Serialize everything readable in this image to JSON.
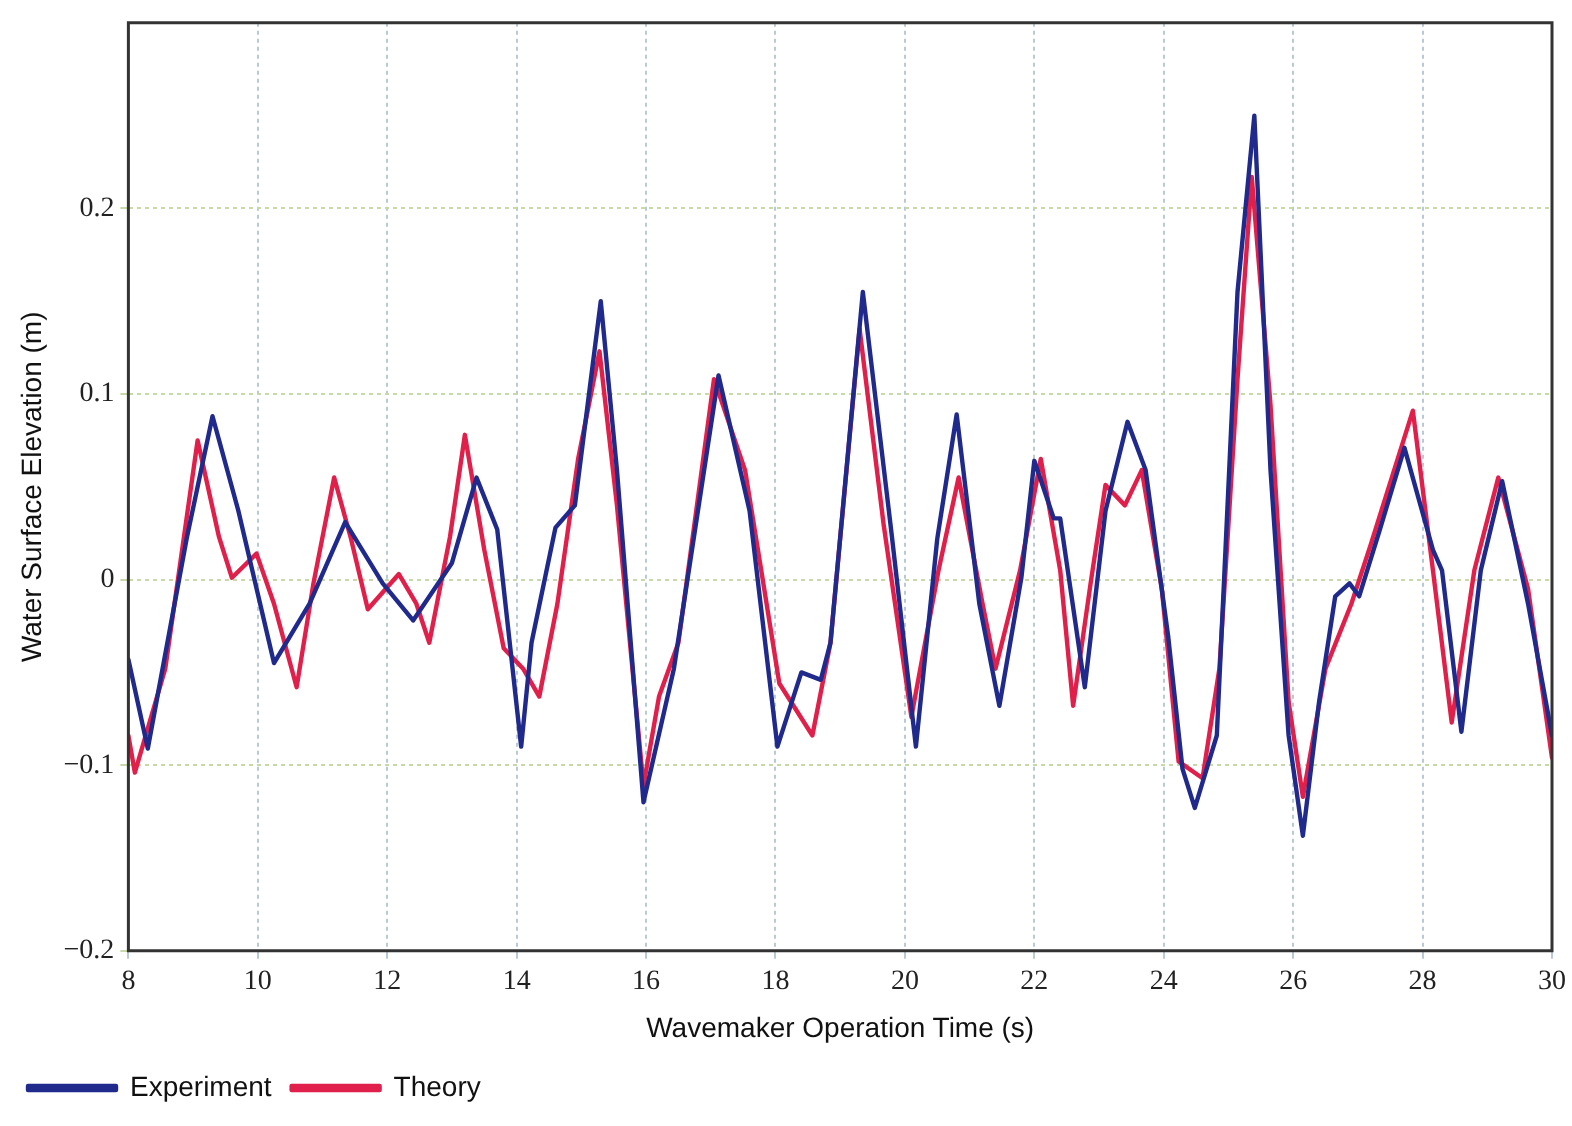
{
  "chart_data": {
    "type": "line",
    "xlabel": "Wavemaker Operation Time (s)",
    "ylabel": "Water Surface Elevation (m)",
    "xlim": [
      8,
      30
    ],
    "xticks": [
      8,
      10,
      12,
      14,
      16,
      18,
      20,
      22,
      24,
      26,
      28,
      30
    ],
    "ylim": [
      -0.2,
      0.3
    ],
    "yticks": [
      {
        "value": -0.2,
        "label": "−0.2"
      },
      {
        "value": -0.1,
        "label": "−0.1"
      },
      0,
      0.1,
      0.2
    ],
    "grid": true,
    "legend": "bottom left",
    "marker": "none",
    "line_style": "solid",
    "series": [
      {
        "name": "Experiment",
        "color": "#1f2a8c",
        "x": [
          8,
          8.3,
          8.9,
          9.3,
          9.7,
          10.25,
          10.8,
          11.35,
          11.93,
          12.4,
          13,
          13.38,
          13.7,
          14.07,
          14.23,
          14.6,
          14.9,
          15.3,
          15.55,
          15.96,
          16.43,
          17.12,
          17.6,
          18.03,
          18.4,
          18.7,
          18.85,
          19.35,
          19.8,
          20.17,
          20.5,
          20.8,
          21.15,
          21.46,
          21.8,
          22,
          22.3,
          22.4,
          22.78,
          23.1,
          23.44,
          23.72,
          24.07,
          24.29,
          24.48,
          24.82,
          25.14,
          25.4,
          25.65,
          25.93,
          26.15,
          26.4,
          26.65,
          26.87,
          27.02,
          27.34,
          27.72,
          28.16,
          28.3,
          28.6,
          28.9,
          29.23,
          29.63,
          30
        ],
        "values": [
          -0.043,
          -0.091,
          0.022,
          0.088,
          0.037,
          -0.045,
          -0.013,
          0.031,
          -0.002,
          -0.022,
          0.009,
          0.055,
          0.027,
          -0.09,
          -0.034,
          0.028,
          0.04,
          0.15,
          0.059,
          -0.12,
          -0.048,
          0.11,
          0.037,
          -0.09,
          -0.05,
          -0.054,
          -0.034,
          0.155,
          0.023,
          -0.09,
          0.022,
          0.089,
          -0.013,
          -0.068,
          0.001,
          0.064,
          0.033,
          0.033,
          -0.058,
          0.037,
          0.085,
          0.059,
          -0.031,
          -0.102,
          -0.123,
          -0.084,
          0.155,
          0.25,
          0.059,
          -0.084,
          -0.138,
          -0.066,
          -0.009,
          -0.002,
          -0.009,
          0.027,
          0.071,
          0.016,
          0.005,
          -0.082,
          0.005,
          0.053,
          -0.013,
          -0.084
        ]
      },
      {
        "name": "Theory",
        "color": "#e0204a",
        "x": [
          8,
          8.1,
          8.57,
          9.07,
          9.4,
          9.6,
          9.98,
          10.25,
          10.6,
          10.86,
          11.18,
          11.44,
          11.7,
          12.18,
          12.45,
          12.65,
          12.97,
          13.2,
          13.5,
          13.8,
          14.1,
          14.35,
          14.63,
          14.95,
          15.28,
          15.55,
          15.96,
          16.2,
          16.5,
          17.05,
          17.53,
          17.78,
          18.06,
          18.57,
          18.85,
          19.3,
          19.67,
          20.1,
          20.52,
          20.83,
          21.2,
          21.4,
          21.78,
          22.1,
          22.4,
          22.6,
          22.87,
          23.1,
          23.4,
          23.66,
          23.97,
          24.23,
          24.6,
          24.86,
          25.14,
          25.36,
          25.65,
          25.93,
          26.15,
          26.5,
          26.9,
          27.2,
          27.85,
          28.16,
          28.45,
          28.8,
          29.17,
          29.63,
          30
        ],
        "values": [
          -0.084,
          -0.104,
          -0.048,
          0.075,
          0.023,
          0.001,
          0.014,
          -0.013,
          -0.058,
          -0.002,
          0.055,
          0.022,
          -0.016,
          0.003,
          -0.013,
          -0.034,
          0.023,
          0.078,
          0.016,
          -0.037,
          -0.048,
          -0.063,
          -0.013,
          0.065,
          0.123,
          0.04,
          -0.111,
          -0.063,
          -0.034,
          0.108,
          0.059,
          0.005,
          -0.056,
          -0.084,
          -0.034,
          0.135,
          0.03,
          -0.074,
          0.005,
          0.055,
          -0.013,
          -0.048,
          0.005,
          0.065,
          0.005,
          -0.068,
          -0.002,
          0.051,
          0.04,
          0.059,
          -0.005,
          -0.098,
          -0.107,
          -0.048,
          0.108,
          0.217,
          0.094,
          -0.066,
          -0.117,
          -0.048,
          -0.013,
          0.019,
          0.091,
          0.005,
          -0.077,
          0.005,
          0.055,
          -0.005,
          -0.096
        ]
      }
    ]
  }
}
